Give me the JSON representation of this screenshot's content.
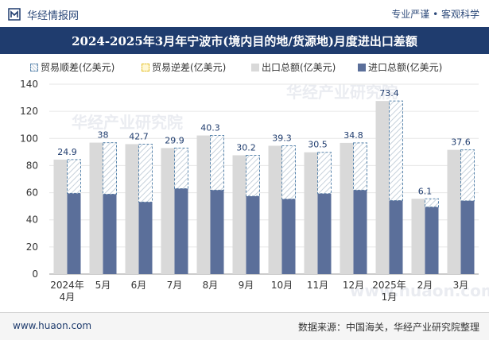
{
  "header": {
    "brand": "华经情报网",
    "slogan": "专业严谨 • 客观科学"
  },
  "watermark": {
    "text": "华经产业研究院",
    "url": "www.huaon.com"
  },
  "footer": {
    "left": "www.huaon.com",
    "right": "数据来源：中国海关，华经产业研究院整理"
  },
  "colors": {
    "title_bg": "#1f3c6e",
    "export_bar": "#d9d9d9",
    "import_bar": "#5b6f9a",
    "surplus_border": "#5a86ad",
    "deficit_border": "#e4c12a"
  },
  "chart_data": {
    "type": "bar",
    "title": "2024-2025年3月年宁波市(境内目的地/货源地)月度进出口差额",
    "legend": [
      "贸易顺差(亿美元)",
      "贸易逆差(亿美元)",
      "出口总额(亿美元)",
      "进口总额(亿美元)"
    ],
    "categories": [
      [
        "2024年",
        "4月"
      ],
      [
        "5月"
      ],
      [
        "6月"
      ],
      [
        "7月"
      ],
      [
        "8月"
      ],
      [
        "9月"
      ],
      [
        "10月"
      ],
      [
        "11月"
      ],
      [
        "12月"
      ],
      [
        "2025年",
        "1月"
      ],
      [
        "2月"
      ],
      [
        "3月"
      ]
    ],
    "ylim": [
      0,
      140
    ],
    "yticks": [
      0,
      20,
      40,
      60,
      80,
      100,
      120,
      140
    ],
    "series": [
      {
        "name": "出口总额(亿美元)",
        "values": [
          84.4,
          96.9,
          95.8,
          92.9,
          102.2,
          87.6,
          94.6,
          89.8,
          96.7,
          127.6,
          55.5,
          91.6
        ]
      },
      {
        "name": "进口总额(亿美元)",
        "values": [
          59.5,
          58.9,
          53.1,
          63.0,
          61.9,
          57.4,
          55.3,
          59.3,
          61.9,
          54.2,
          49.4,
          54.0
        ]
      },
      {
        "name": "贸易顺差(亿美元)",
        "values": [
          24.9,
          38,
          42.7,
          29.9,
          40.3,
          30.2,
          39.3,
          30.5,
          34.8,
          73.4,
          6.1,
          37.6
        ]
      }
    ]
  }
}
